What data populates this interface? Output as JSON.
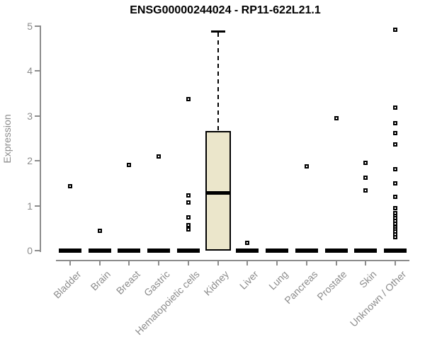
{
  "chart_data": {
    "type": "boxplot",
    "title": "ENSG00000244024 - RP11-622L21.1",
    "ylabel": "Expression",
    "xlabel": "",
    "ylim": [
      0,
      5
    ],
    "yticks": [
      0,
      1,
      2,
      3,
      4,
      5
    ],
    "grid": false,
    "legend": "none",
    "categories": [
      "Bladder",
      "Brain",
      "Breast",
      "Gastric",
      "Hematopoietic cells",
      "Kidney",
      "Liver",
      "Lung",
      "Pancreas",
      "Prostate",
      "Skin",
      "Unknown / Other"
    ],
    "groups": [
      {
        "name": "Bladder",
        "q1": 0,
        "median": 0,
        "q3": 0,
        "whisker_low": 0,
        "whisker_high": 0,
        "outliers": [
          1.44
        ]
      },
      {
        "name": "Brain",
        "q1": 0,
        "median": 0,
        "q3": 0,
        "whisker_low": 0,
        "whisker_high": 0,
        "outliers": [
          0.44
        ]
      },
      {
        "name": "Breast",
        "q1": 0,
        "median": 0,
        "q3": 0,
        "whisker_low": 0,
        "whisker_high": 0,
        "outliers": [
          1.91
        ]
      },
      {
        "name": "Gastric",
        "q1": 0,
        "median": 0,
        "q3": 0,
        "whisker_low": 0,
        "whisker_high": 0,
        "outliers": [
          2.1
        ]
      },
      {
        "name": "Hematopoietic cells",
        "q1": 0,
        "median": 0,
        "q3": 0,
        "whisker_low": 0,
        "whisker_high": 0,
        "outliers": [
          3.38,
          1.23,
          1.07,
          0.74,
          0.57,
          0.47
        ]
      },
      {
        "name": "Kidney",
        "q1": 0,
        "median": 1.3,
        "q3": 2.67,
        "whisker_low": 0,
        "whisker_high": 4.89,
        "outliers": []
      },
      {
        "name": "Liver",
        "q1": 0,
        "median": 0,
        "q3": 0,
        "whisker_low": 0,
        "whisker_high": 0,
        "outliers": [
          0.17
        ]
      },
      {
        "name": "Lung",
        "q1": 0,
        "median": 0,
        "q3": 0,
        "whisker_low": 0,
        "whisker_high": 0,
        "outliers": []
      },
      {
        "name": "Pancreas",
        "q1": 0,
        "median": 0,
        "q3": 0,
        "whisker_low": 0,
        "whisker_high": 0,
        "outliers": [
          1.88
        ]
      },
      {
        "name": "Prostate",
        "q1": 0,
        "median": 0,
        "q3": 0,
        "whisker_low": 0,
        "whisker_high": 0,
        "outliers": [
          2.95
        ]
      },
      {
        "name": "Skin",
        "q1": 0,
        "median": 0,
        "q3": 0,
        "whisker_low": 0,
        "whisker_high": 0,
        "outliers": [
          1.96,
          1.62,
          1.34
        ]
      },
      {
        "name": "Unknown / Other",
        "q1": 0,
        "median": 0,
        "q3": 0,
        "whisker_low": 0,
        "whisker_high": 0,
        "outliers": [
          4.92,
          3.19,
          2.84,
          2.62,
          2.37,
          1.81,
          1.5,
          1.2,
          0.95,
          0.84,
          0.78,
          0.72,
          0.66,
          0.6,
          0.52,
          0.47,
          0.42,
          0.36,
          0.3
        ]
      }
    ],
    "colors": {
      "box_fill": "#EBE6CB",
      "box_border": "#000000",
      "median": "#000000",
      "outlier": "#000000",
      "axis": "#8C8C8C",
      "tick_text": "#8C8C8C",
      "title_text": "#000000",
      "background": "#FFFFFF"
    }
  }
}
